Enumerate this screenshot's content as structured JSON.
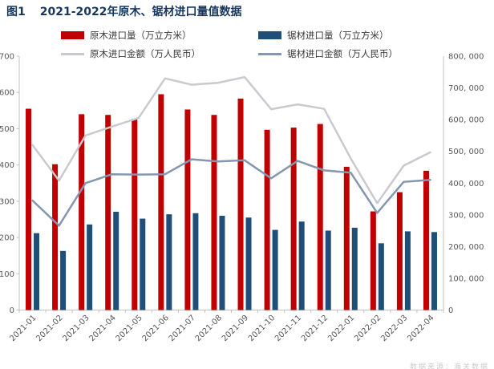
{
  "header": {
    "figure_label": "图1",
    "title": "2021-2022年原木、锯材进口量值数据"
  },
  "watermark": {
    "text": "数据来源：海关数据"
  },
  "chart_data": {
    "type": "bar",
    "subtype": "combo-bar-line-dual-axis",
    "title": "图1 2021-2022年原木、锯材进口量值数据",
    "categories": [
      "2021-01",
      "2021-02",
      "2021-03",
      "2021-04",
      "2021-05",
      "2021-06",
      "2021-07",
      "2021-08",
      "2021-09",
      "2021-10",
      "2021-11",
      "2021-12",
      "2022-01",
      "2022-02",
      "2022-03",
      "2022-04"
    ],
    "series": [
      {
        "name": "原木进口量（万立方米）",
        "type": "bar",
        "axis": "left",
        "color": "#C00000",
        "values": [
          555,
          402,
          540,
          538,
          527,
          595,
          553,
          538,
          583,
          497,
          503,
          513,
          395,
          272,
          325,
          384
        ]
      },
      {
        "name": "锯材进口量（万立方米）",
        "type": "bar",
        "axis": "left",
        "color": "#1F4E79",
        "values": [
          212,
          163,
          236,
          271,
          252,
          264,
          267,
          260,
          255,
          221,
          244,
          219,
          227,
          184,
          217,
          215
        ]
      },
      {
        "name": "原木进口金额（万人民币）",
        "type": "line",
        "axis": "right",
        "color": "#C9CAD0",
        "values": [
          520000,
          408000,
          550000,
          578000,
          605000,
          730000,
          710000,
          716000,
          734000,
          633000,
          648000,
          634000,
          478000,
          337000,
          455000,
          497000
        ]
      },
      {
        "name": "锯材进口金额（万人民币）",
        "type": "line",
        "axis": "right",
        "color": "#8496B0",
        "values": [
          345000,
          266000,
          400000,
          428000,
          427000,
          428000,
          475000,
          468000,
          472000,
          415000,
          470000,
          440000,
          433000,
          306000,
          404000,
          410000
        ]
      }
    ],
    "left_axis": {
      "min": 0,
      "max": 700,
      "step": 100,
      "tick_labels": [
        "0",
        "100",
        "200",
        "300",
        "400",
        "500",
        "600",
        "700"
      ]
    },
    "right_axis": {
      "min": 0,
      "max": 800000,
      "step": 100000,
      "tick_labels": [
        "0",
        "100, 000",
        "200, 000",
        "300, 000",
        "400, 000",
        "500, 000",
        "600, 000",
        "700, 000",
        "800, 000"
      ]
    },
    "grid": false,
    "legend_position": "top",
    "axis_text_color": "#595959",
    "axis_line_color": "#C0C0C0"
  }
}
